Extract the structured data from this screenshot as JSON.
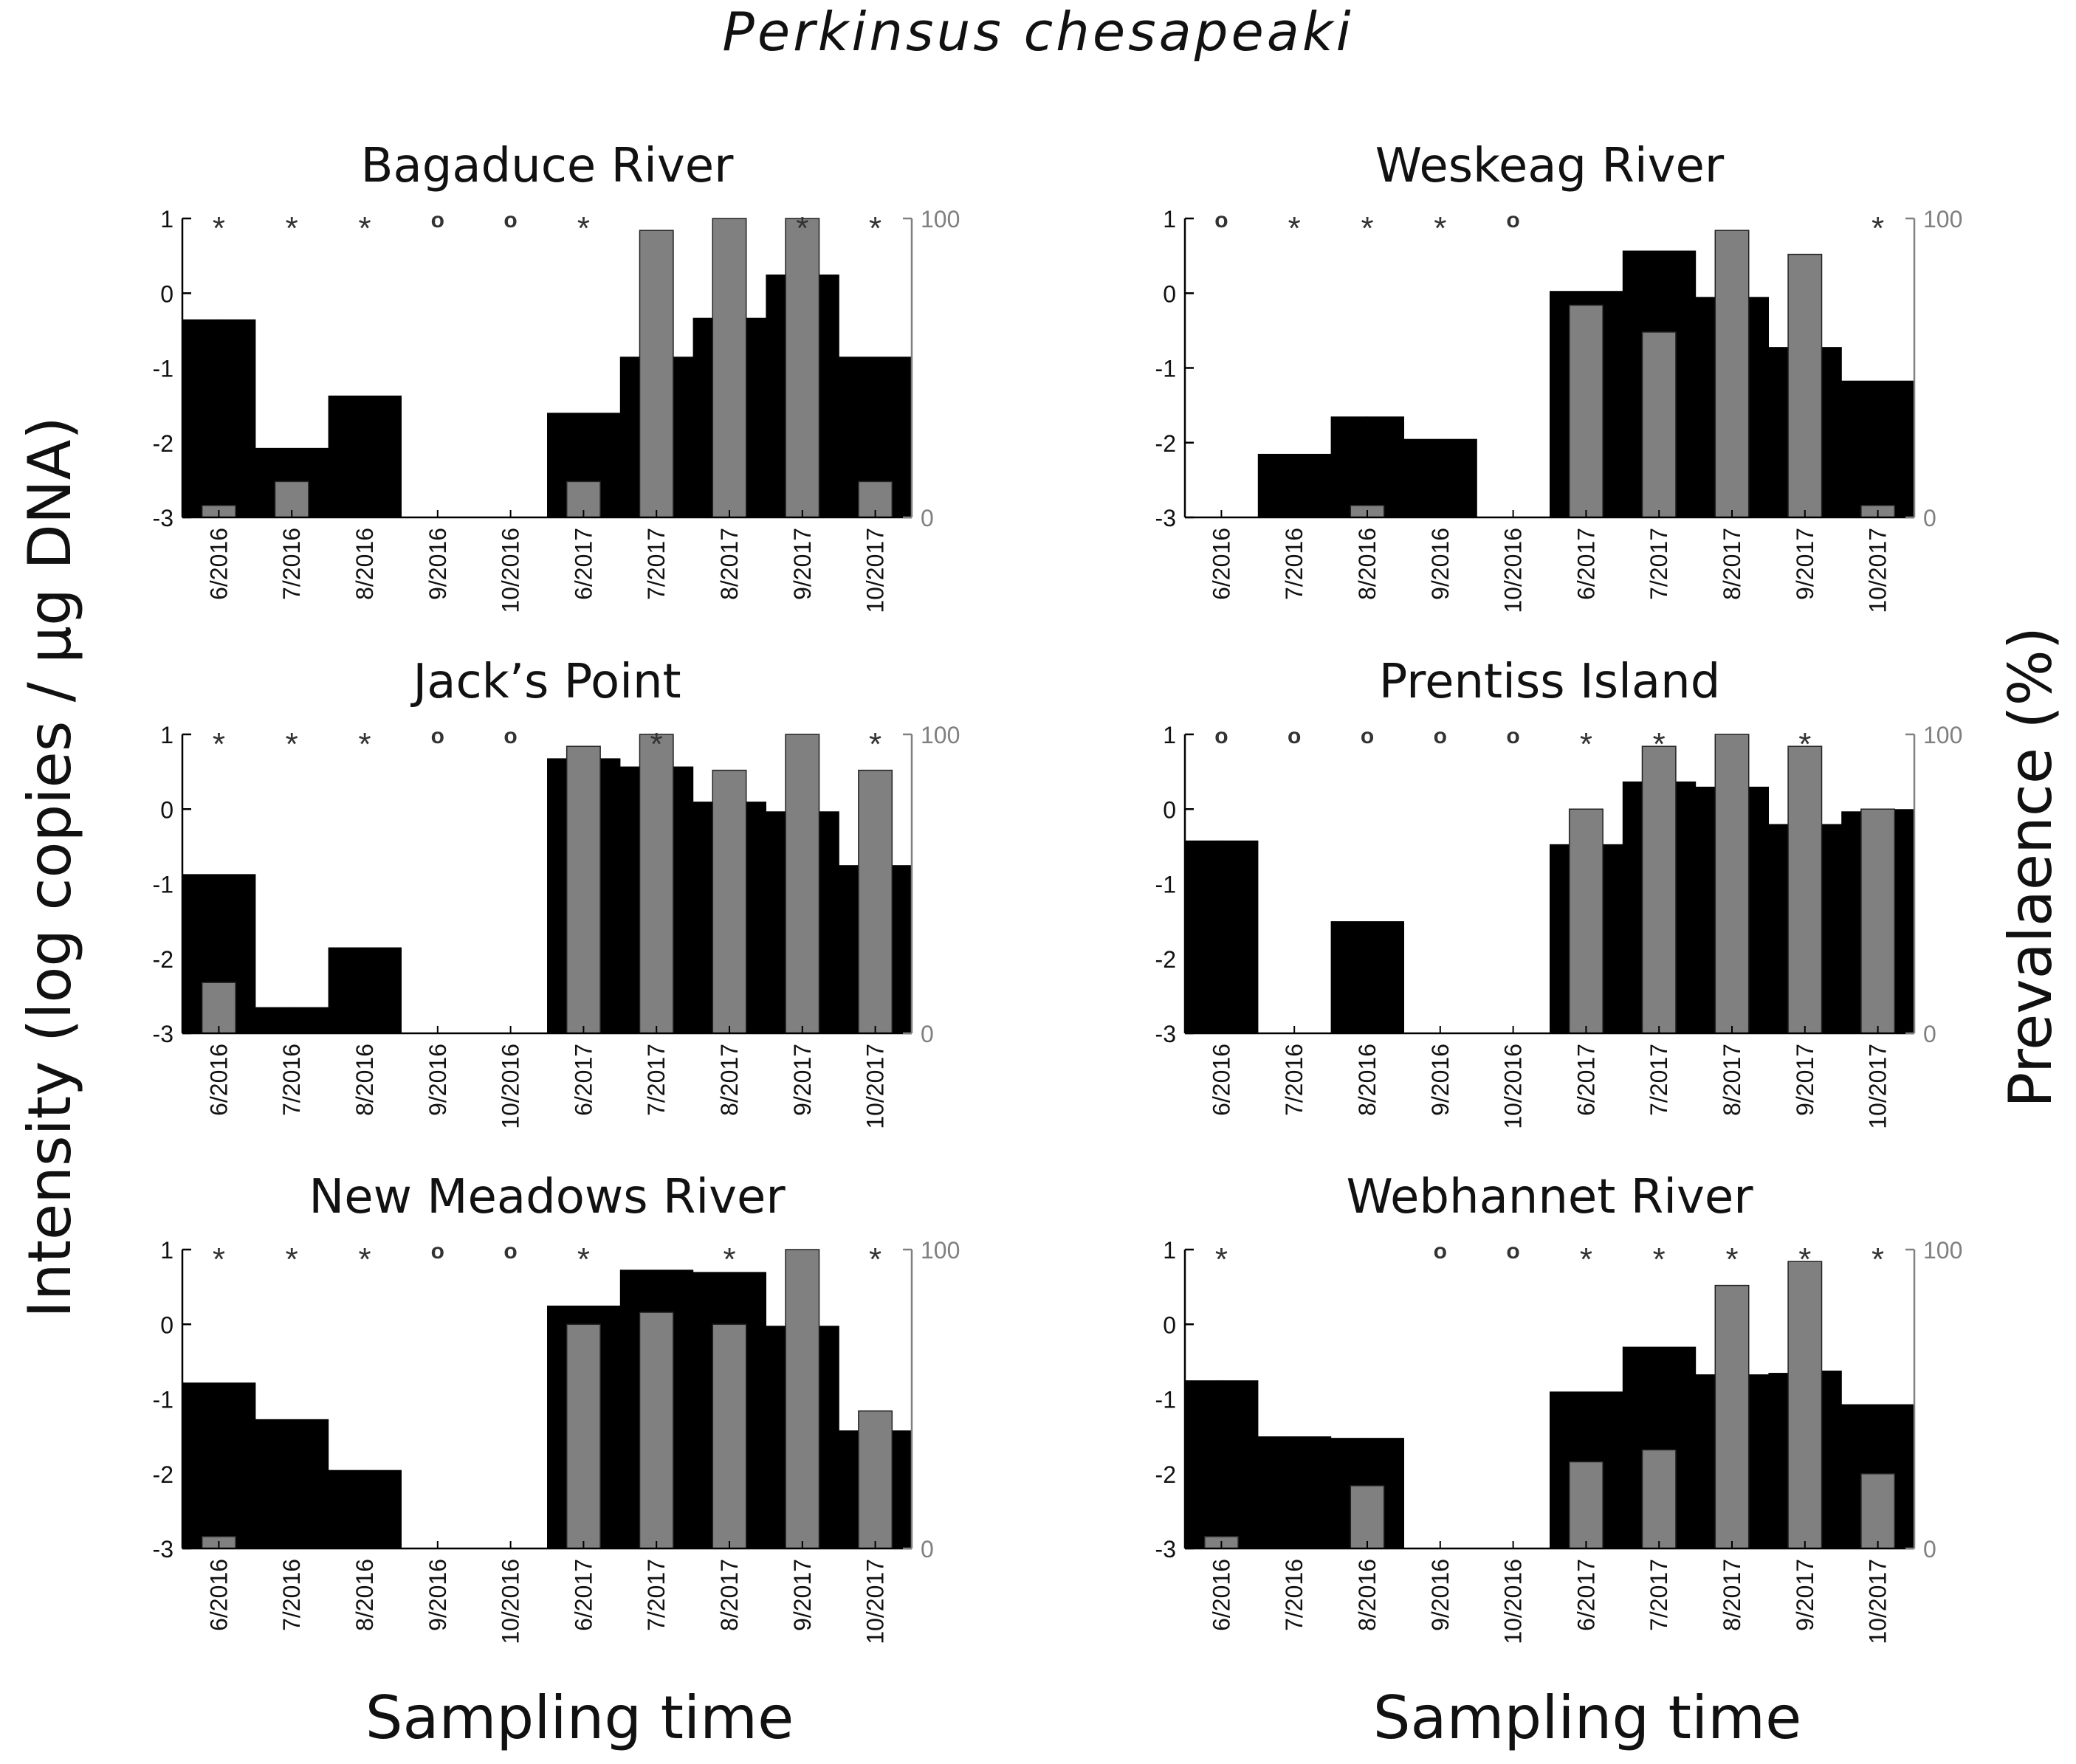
{
  "figure_title": "Perkinsus chesapeaki",
  "left_axis_label": "Intensity (log copies / µg DNA)",
  "right_axis_label": "Prevalaence (%)",
  "xlabel": "Sampling time",
  "colors": {
    "intensity_bar": "#000000",
    "prevalence_bar": "#808080",
    "right_axis": "#808080"
  },
  "chart_data": [
    {
      "type": "bar",
      "title": "Bagaduce River",
      "categories": [
        "6/2016",
        "7/2016",
        "8/2016",
        "9/2016",
        "10/2016",
        "6/2017",
        "7/2017",
        "8/2017",
        "9/2017",
        "10/2017"
      ],
      "ylim_left": [
        -3,
        1
      ],
      "yticks_left": [
        -3,
        -2,
        -1,
        0,
        1
      ],
      "ylim_right": [
        0,
        100
      ],
      "yticks_right": [
        0,
        100
      ],
      "intensity": [
        -0.35,
        -2.07,
        -1.37,
        null,
        null,
        -1.6,
        -0.85,
        -0.33,
        0.25,
        -0.85
      ],
      "intensity_halves": [
        [
          -0.35,
          -0.35
        ],
        [
          -2.07,
          -2.07
        ],
        [
          -1.37,
          -1.37
        ],
        [
          null,
          null
        ],
        [
          null,
          null
        ],
        [
          -1.6,
          -1.6
        ],
        [
          -0.85,
          -0.85
        ],
        [
          -0.33,
          -0.33
        ],
        [
          0.25,
          0.25
        ],
        [
          -0.85,
          -0.85
        ]
      ],
      "prevalence": [
        4,
        12,
        null,
        null,
        null,
        12,
        96,
        100,
        100,
        12
      ],
      "markers": [
        "*",
        "*",
        "*",
        "o",
        "o",
        "*",
        "",
        "",
        "*",
        "*"
      ]
    },
    {
      "type": "bar",
      "title": "Weskeag River",
      "categories": [
        "6/2016",
        "7/2016",
        "8/2016",
        "9/2016",
        "10/2016",
        "6/2017",
        "7/2017",
        "8/2017",
        "9/2017",
        "10/2017"
      ],
      "ylim_left": [
        -3,
        1
      ],
      "yticks_left": [
        -3,
        -2,
        -1,
        0,
        1
      ],
      "ylim_right": [
        0,
        100
      ],
      "yticks_right": [
        0,
        100
      ],
      "intensity": [
        null,
        -2.15,
        -1.65,
        -1.95,
        null,
        0.03,
        0.57,
        -0.05,
        -0.72,
        -1.17
      ],
      "intensity_halves": [
        [
          null,
          null
        ],
        [
          -2.15,
          -2.15
        ],
        [
          -1.65,
          -1.65
        ],
        [
          -1.95,
          -1.95
        ],
        [
          null,
          null
        ],
        [
          0.03,
          0.03
        ],
        [
          0.57,
          0.57
        ],
        [
          -0.05,
          -0.05
        ],
        [
          -0.72,
          -0.72
        ],
        [
          -1.17,
          -1.17
        ]
      ],
      "prevalence": [
        null,
        null,
        4,
        null,
        null,
        71,
        62,
        96,
        88,
        4
      ],
      "markers": [
        "o",
        "*",
        "*",
        "*",
        "o",
        "",
        "",
        "",
        "",
        "*"
      ]
    },
    {
      "type": "bar",
      "title": "Jack’s  Point",
      "categories": [
        "6/2016",
        "7/2016",
        "8/2016",
        "9/2016",
        "10/2016",
        "6/2017",
        "7/2017",
        "8/2017",
        "9/2017",
        "10/2017"
      ],
      "ylim_left": [
        -3,
        1
      ],
      "yticks_left": [
        -3,
        -2,
        -1,
        0,
        1
      ],
      "ylim_right": [
        0,
        100
      ],
      "yticks_right": [
        0,
        100
      ],
      "intensity": [
        -0.87,
        -2.65,
        -1.85,
        null,
        null,
        0.68,
        0.57,
        0.1,
        -0.03,
        -0.75
      ],
      "intensity_halves": [
        [
          -0.87,
          -0.87
        ],
        [
          -2.65,
          -2.65
        ],
        [
          -1.85,
          -1.85
        ],
        [
          null,
          null
        ],
        [
          null,
          null
        ],
        [
          0.68,
          0.68
        ],
        [
          0.57,
          0.57
        ],
        [
          0.1,
          0.1
        ],
        [
          -0.03,
          -0.03
        ],
        [
          -0.75,
          -0.75
        ]
      ],
      "prevalence": [
        17,
        null,
        null,
        null,
        null,
        96,
        100,
        88,
        100,
        88
      ],
      "markers": [
        "*",
        "*",
        "*",
        "o",
        "o",
        "",
        "*",
        "",
        "",
        "*"
      ]
    },
    {
      "type": "bar",
      "title": "Prentiss Island",
      "categories": [
        "6/2016",
        "7/2016",
        "8/2016",
        "9/2016",
        "10/2016",
        "6/2017",
        "7/2017",
        "8/2017",
        "9/2017",
        "10/2017"
      ],
      "ylim_left": [
        -3,
        1
      ],
      "yticks_left": [
        -3,
        -2,
        -1,
        0,
        1
      ],
      "ylim_right": [
        0,
        100
      ],
      "yticks_right": [
        0,
        100
      ],
      "intensity": [
        -0.42,
        null,
        -1.5,
        null,
        null,
        -0.47,
        0.37,
        0.3,
        -0.2,
        0
      ],
      "intensity_halves": [
        [
          -0.42,
          -0.42
        ],
        [
          null,
          null
        ],
        [
          -1.5,
          -1.5
        ],
        [
          null,
          null
        ],
        [
          null,
          null
        ],
        [
          -0.47,
          -0.47
        ],
        [
          0.37,
          0.37
        ],
        [
          0.3,
          0.3
        ],
        [
          -0.2,
          -0.2
        ],
        [
          -0.03,
          0
        ]
      ],
      "prevalence": [
        null,
        null,
        null,
        null,
        null,
        75,
        96,
        100,
        96,
        75
      ],
      "markers": [
        "o",
        "o",
        "o",
        "o",
        "o",
        "*",
        "*",
        "",
        "*",
        ""
      ]
    },
    {
      "type": "bar",
      "title": "New  Meadows River",
      "categories": [
        "6/2016",
        "7/2016",
        "8/2016",
        "9/2016",
        "10/2016",
        "6/2017",
        "7/2017",
        "8/2017",
        "9/2017",
        "10/2017"
      ],
      "ylim_left": [
        -3,
        1
      ],
      "yticks_left": [
        -3,
        -2,
        -1,
        0,
        1
      ],
      "ylim_right": [
        0,
        100
      ],
      "yticks_right": [
        0,
        100
      ],
      "intensity": [
        -0.78,
        -1.27,
        -1.95,
        null,
        null,
        0.25,
        0.73,
        0.7,
        -0.02,
        -1.42
      ],
      "intensity_halves": [
        [
          -0.78,
          -0.78
        ],
        [
          -1.27,
          -1.27
        ],
        [
          -1.95,
          -1.95
        ],
        [
          null,
          null
        ],
        [
          null,
          null
        ],
        [
          0.25,
          0.25
        ],
        [
          0.73,
          0.73
        ],
        [
          0.7,
          0.7
        ],
        [
          -0.02,
          -0.02
        ],
        [
          -1.42,
          -1.42
        ]
      ],
      "prevalence": [
        4,
        null,
        null,
        null,
        null,
        75,
        79,
        75,
        100,
        46
      ],
      "markers": [
        "*",
        "*",
        "*",
        "o",
        "o",
        "*",
        "",
        "*",
        "",
        "*"
      ]
    },
    {
      "type": "bar",
      "title": "Webhannet River",
      "categories": [
        "6/2016",
        "7/2016",
        "8/2016",
        "9/2016",
        "10/2016",
        "6/2017",
        "7/2017",
        "8/2017",
        "9/2017",
        "10/2017"
      ],
      "ylim_left": [
        -3,
        1
      ],
      "yticks_left": [
        -3,
        -2,
        -1,
        0,
        1
      ],
      "ylim_right": [
        0,
        100
      ],
      "yticks_right": [
        0,
        100
      ],
      "intensity": [
        -0.75,
        -1.5,
        -1.52,
        null,
        null,
        -0.9,
        -0.3,
        -0.67,
        -0.62,
        -1.07
      ],
      "intensity_halves": [
        [
          -0.75,
          -0.75
        ],
        [
          -1.5,
          -1.5
        ],
        [
          -1.52,
          -1.52
        ],
        [
          null,
          null
        ],
        [
          null,
          null
        ],
        [
          -0.9,
          -0.9
        ],
        [
          -0.3,
          -0.3
        ],
        [
          -0.67,
          -0.67
        ],
        [
          -0.65,
          -0.62
        ],
        [
          -1.07,
          -1.07
        ]
      ],
      "prevalence": [
        4,
        null,
        21,
        null,
        null,
        29,
        33,
        88,
        96,
        25
      ],
      "markers": [
        "*",
        "",
        "",
        "o",
        "o",
        "*",
        "*",
        "*",
        "*",
        "*"
      ]
    }
  ]
}
